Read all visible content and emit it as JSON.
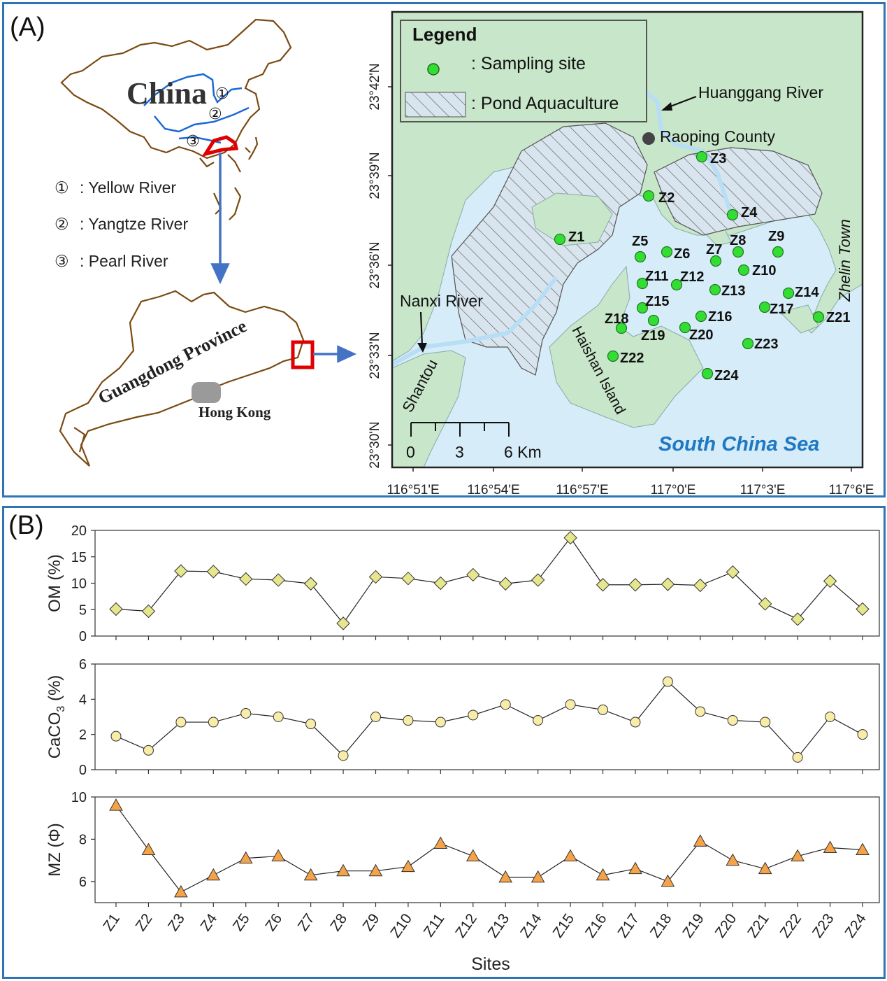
{
  "panel_a": {
    "label": "(A)",
    "china_label": "China",
    "circled_numbers": [
      "①",
      "②",
      "③"
    ],
    "rivers_legend": [
      {
        "num": "①",
        "name": ": Yellow River"
      },
      {
        "num": "②",
        "name": ": Yangtze River"
      },
      {
        "num": "③",
        "name": ": Pearl River"
      }
    ],
    "guangdong_label": "Guangdong Province",
    "hongkong_label": "Hong Kong",
    "map": {
      "legend_title": "Legend",
      "legend_sampling": ": Sampling site",
      "legend_pond": ": Pond Aquaculture",
      "huanggang_river": "Huanggang River",
      "raoping_county": "Raoping County",
      "nanxi_river": "Nanxi River",
      "shantou": "Shantou",
      "haishan_island": "Haishan Island",
      "zhelin_town": "Zhelin Town",
      "south_china_sea": "South China Sea",
      "scale_ticks": [
        "0",
        "3",
        "6 Km"
      ],
      "lat_labels": [
        "23°42'N",
        "23°39'N",
        "23°36'N",
        "23°33'N",
        "23°30'N"
      ],
      "lon_labels": [
        "116°51'E",
        "116°54'E",
        "116°57'E",
        "117°0'E",
        "117°3'E",
        "117°6'E"
      ],
      "sites": [
        "Z1",
        "Z2",
        "Z3",
        "Z4",
        "Z5",
        "Z6",
        "Z7",
        "Z8",
        "Z9",
        "Z10",
        "Z11",
        "Z12",
        "Z13",
        "Z14",
        "Z15",
        "Z16",
        "Z17",
        "Z18",
        "Z19",
        "Z20",
        "Z21",
        "Z22",
        "Z23",
        "Z24"
      ],
      "colors": {
        "land": "#c8e6c9",
        "sea": "#d6ecf8",
        "site": "#33dd33",
        "frame": "#222222"
      }
    }
  },
  "panel_b": {
    "label": "(B)",
    "chart_data": [
      {
        "type": "line",
        "ylabel": "OM (%)",
        "ylim": [
          0,
          20
        ],
        "yticks": [
          "0",
          "5",
          "10",
          "15",
          "20"
        ],
        "categories": [
          "Z1",
          "Z2",
          "Z3",
          "Z4",
          "Z5",
          "Z6",
          "Z7",
          "Z8",
          "Z9",
          "Z10",
          "Z11",
          "Z12",
          "Z13",
          "Z14",
          "Z15",
          "Z16",
          "Z17",
          "Z18",
          "Z19",
          "Z20",
          "Z21",
          "Z22",
          "Z23",
          "Z24"
        ],
        "values": [
          5.1,
          4.7,
          12.3,
          12.2,
          10.8,
          10.6,
          9.9,
          2.4,
          11.2,
          10.9,
          10.0,
          11.6,
          9.9,
          10.6,
          18.6,
          9.7,
          9.7,
          9.8,
          9.6,
          12.1,
          6.1,
          3.2,
          10.4,
          5.1
        ],
        "marker": "diamond",
        "color": "#e6e68c"
      },
      {
        "type": "line",
        "ylabel": "CaCO3 (%)",
        "ylim": [
          0,
          6
        ],
        "yticks": [
          "0",
          "2",
          "4",
          "6"
        ],
        "categories": [
          "Z1",
          "Z2",
          "Z3",
          "Z4",
          "Z5",
          "Z6",
          "Z7",
          "Z8",
          "Z9",
          "Z10",
          "Z11",
          "Z12",
          "Z13",
          "Z14",
          "Z15",
          "Z16",
          "Z17",
          "Z18",
          "Z19",
          "Z20",
          "Z21",
          "Z22",
          "Z23",
          "Z24"
        ],
        "values": [
          1.9,
          1.1,
          2.7,
          2.7,
          3.2,
          3.0,
          2.6,
          0.8,
          3.0,
          2.8,
          2.7,
          3.1,
          3.7,
          2.8,
          3.7,
          3.4,
          2.7,
          5.0,
          3.3,
          2.8,
          2.7,
          0.7,
          3.0,
          2.0
        ],
        "marker": "circle",
        "color": "#f7eca8"
      },
      {
        "type": "line",
        "ylabel": "MZ (Φ)",
        "ylim": [
          5,
          10
        ],
        "yticks": [
          "6",
          "8",
          "10"
        ],
        "categories": [
          "Z1",
          "Z2",
          "Z3",
          "Z4",
          "Z5",
          "Z6",
          "Z7",
          "Z8",
          "Z9",
          "Z10",
          "Z11",
          "Z12",
          "Z13",
          "Z14",
          "Z15",
          "Z16",
          "Z17",
          "Z18",
          "Z19",
          "Z20",
          "Z21",
          "Z22",
          "Z23",
          "Z24"
        ],
        "values": [
          9.6,
          7.5,
          5.5,
          6.3,
          7.1,
          7.2,
          6.3,
          6.5,
          6.5,
          6.7,
          7.8,
          7.2,
          6.2,
          6.2,
          7.2,
          6.3,
          6.6,
          6.0,
          7.9,
          7.0,
          6.6,
          7.2,
          7.6,
          7.5
        ],
        "marker": "triangle",
        "color": "#f5a348"
      }
    ],
    "xlabel": "Sites"
  }
}
